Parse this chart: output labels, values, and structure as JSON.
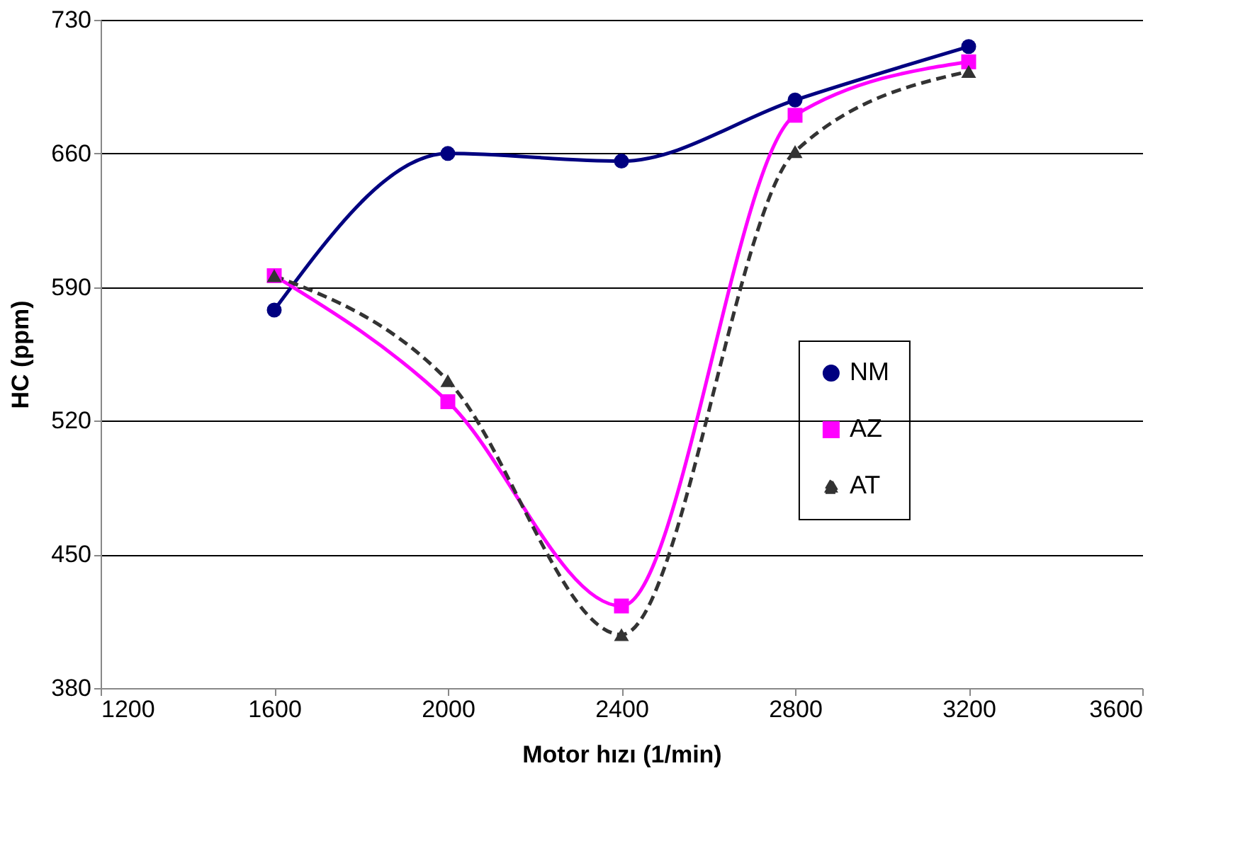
{
  "chart_data": {
    "type": "line",
    "xlabel": "Motor hızı (1/min)",
    "ylabel": "HC   (ppm)",
    "x": [
      1600,
      2000,
      2400,
      2800,
      3200
    ],
    "series": [
      {
        "name": "NM",
        "color": "#000080",
        "marker": "circle",
        "line_style": "solid",
        "values": [
          578,
          660,
          656,
          688,
          716
        ]
      },
      {
        "name": "AZ",
        "color": "#ff00ff",
        "marker": "square",
        "line_style": "solid",
        "values": [
          596,
          530,
          423,
          680,
          708
        ]
      },
      {
        "name": "AT",
        "color": "#333333",
        "marker": "triangle",
        "line_style": "dashed",
        "values": [
          596,
          541,
          408,
          661,
          703
        ]
      }
    ],
    "xlim": [
      1200,
      3600
    ],
    "xticks": [
      1200,
      1600,
      2000,
      2400,
      2800,
      3200,
      3600
    ],
    "ylim": [
      380,
      730
    ],
    "yticks": [
      380,
      450,
      520,
      590,
      660,
      730
    ],
    "grid": "y",
    "legend": "right"
  }
}
